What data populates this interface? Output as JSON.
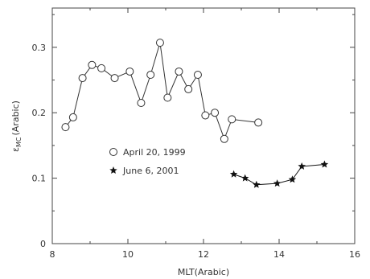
{
  "chart_data": {
    "type": "scatter",
    "xlabel": "MLT(Arabic)",
    "ylabel": "ε",
    "ylabel_sub": "MC",
    "ylabel_suffix": "(Arabic)",
    "xlim": [
      8,
      16
    ],
    "ylim": [
      0,
      0.36
    ],
    "xticks": [
      8,
      10,
      12,
      14,
      16
    ],
    "yticks": [
      0,
      0.1,
      0.2,
      0.3
    ],
    "xtick_labels": [
      "8",
      "10",
      "12",
      "14",
      "16"
    ],
    "ytick_labels": [
      "0",
      "0.1",
      "0.2",
      "0.3"
    ],
    "legend_position": "center-left",
    "grid": false,
    "series": [
      {
        "name": "April 20, 1999",
        "marker": "open-circle",
        "line": true,
        "color": "#333333",
        "x": [
          8.35,
          8.55,
          8.8,
          9.05,
          9.3,
          9.65,
          10.05,
          10.35,
          10.6,
          10.85,
          11.05,
          11.35,
          11.6,
          11.85,
          12.05,
          12.3,
          12.55,
          12.75,
          13.45
        ],
        "y": [
          0.178,
          0.193,
          0.253,
          0.273,
          0.268,
          0.253,
          0.263,
          0.215,
          0.258,
          0.307,
          0.223,
          0.263,
          0.236,
          0.258,
          0.196,
          0.2,
          0.16,
          0.19,
          0.185
        ]
      },
      {
        "name": "June 6, 2001",
        "marker": "filled-star",
        "line": true,
        "color": "#111111",
        "x": [
          12.8,
          13.1,
          13.4,
          13.95,
          14.35,
          14.6,
          15.2
        ],
        "y": [
          0.106,
          0.1,
          0.09,
          0.092,
          0.098,
          0.118,
          0.121
        ]
      }
    ]
  }
}
